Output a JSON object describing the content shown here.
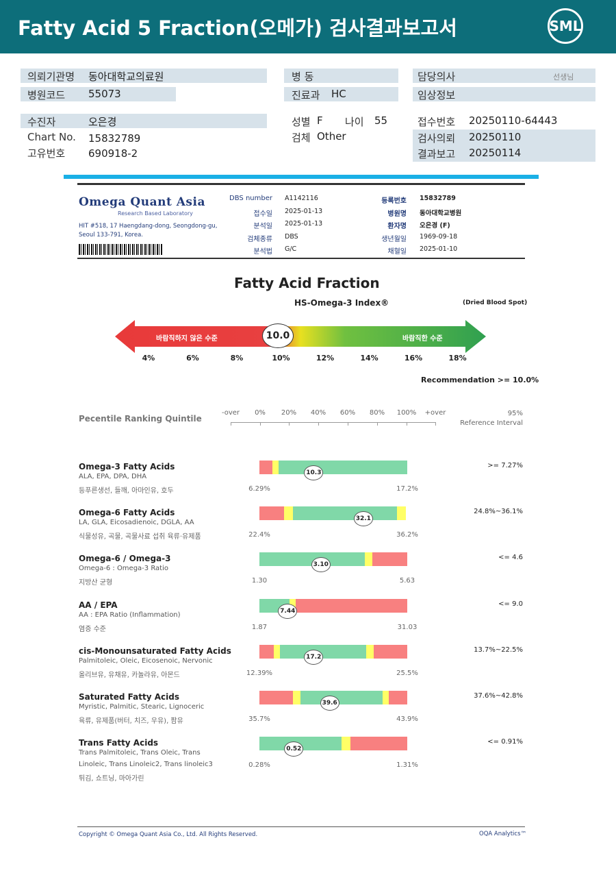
{
  "header": {
    "title": "Fatty Acid 5 Fraction(오메가) 검사결과보고서",
    "logo": "SML"
  },
  "info": {
    "inst_label": "의뢰기관명",
    "inst": "동아대학교의료원",
    "code_label": "병원코드",
    "code": "55073",
    "ward_label": "병 동",
    "dept_label": "진료과",
    "dept": "HC",
    "doctor_label": "담당의사",
    "doctor_suffix": "선생님",
    "clinical_label": "임상정보",
    "patient_label": "수진자",
    "patient": "오은경",
    "chart_label": "Chart No.",
    "chart": "15832789",
    "uid_label": "고유번호",
    "uid": "690918-2",
    "sex_label": "성별",
    "sex": "F",
    "age_label": "나이",
    "age": "55",
    "specimen_label": "검체",
    "specimen": "Other",
    "recv_label": "접수번호",
    "recv": "20250110-64443",
    "req_label": "검사의뢰",
    "req": "20250110",
    "rep_label": "결과보고",
    "rep": "20250114"
  },
  "report": {
    "company": "Omega Quant Asia",
    "company_sub": "Research Based Laboratory",
    "address1": "HIT #518, 17 Haengdang-dong, Seongdong-gu,",
    "address2": "Seoul 133-791, Korea.",
    "left_fields": [
      {
        "k": "DBS number",
        "v": "A1142116"
      },
      {
        "k": "접수일",
        "v": "2025-01-13"
      },
      {
        "k": "분석일",
        "v": "2025-01-13"
      },
      {
        "k": "검체종류",
        "v": "DBS"
      },
      {
        "k": "분석법",
        "v": "G/C"
      }
    ],
    "right_fields": [
      {
        "k": "등록번호",
        "v": "15832789"
      },
      {
        "k": "병원명",
        "v": "동아대학교병원"
      },
      {
        "k": "환자명",
        "v": "오은경 (F)"
      },
      {
        "k": "생년월일",
        "v": "1969-09-18"
      },
      {
        "k": "채혈일",
        "v": "2025-01-10"
      }
    ],
    "title": "Fatty Acid Fraction",
    "index_label": "HS-Omega-3 Index®",
    "spot": "(Dried Blood Spot)",
    "index_value": "10.0",
    "bad": "바람직하지 않은 수준",
    "good": "바람직한 수준",
    "scale": [
      "4%",
      "6%",
      "8%",
      "10%",
      "12%",
      "14%",
      "16%",
      "18%"
    ],
    "recommendation": "Recommendation  >= 10.0%",
    "quintile_label": "Pecentile Ranking Quintile",
    "quintile_ticks": [
      "-over",
      "0%",
      "20%",
      "40%",
      "60%",
      "80%",
      "100%",
      "+over"
    ],
    "ref_label1": "95%",
    "ref_label2": "Reference Interval",
    "copyright": "Copyright © Omega Quant Asia Co., Ltd.  All Rights Reserved.",
    "brand": "OQA Analytics™"
  },
  "rows": [
    {
      "name": "Omega-3 Fatty Acids",
      "sub": "ALA, EPA, DPA, DHA",
      "kr": "등푸른생선, 들깨, 아마인유, 호두",
      "value": 10.3,
      "label": "10.3",
      "min": 6.29,
      "max": 17.2,
      "min_label": "6.29%",
      "max_label": "17.2%",
      "ref": ">= 7.27%"
    },
    {
      "name": "Omega-6 Fatty Acids",
      "sub": "LA, GLA, Eicosadienoic, DGLA, AA",
      "kr": "식물성유, 곡물, 곡물사료 섭취 육류·유제품",
      "value": 32.1,
      "label": "32.1",
      "min": 22.4,
      "max": 36.2,
      "min_label": "22.4%",
      "max_label": "36.2%",
      "ref": "24.8%~36.1%"
    },
    {
      "name": "Omega-6 / Omega-3",
      "sub": "Omega-6 : Omega-3 Ratio",
      "kr": "지방산 균형",
      "value": 3.1,
      "label": "3.10",
      "min": 1.3,
      "max": 5.63,
      "min_label": "1.30",
      "max_label": "5.63",
      "ref": "<= 4.6"
    },
    {
      "name": "AA / EPA",
      "sub": "AA : EPA Ratio (Inflammation)",
      "kr": "염증 수준",
      "value": 7.44,
      "label": "7.44",
      "min": 1.87,
      "max": 31.03,
      "min_label": "1.87",
      "max_label": "31.03",
      "ref": "<= 9.0"
    },
    {
      "name": "cis-Monounsaturated Fatty Acids",
      "sub": "Palmitoleic, Oleic, Eicosenoic, Nervonic",
      "kr": "올리브유, 유채유, 카놀라유, 아몬드",
      "value": 17.2,
      "label": "17.2",
      "min": 12.39,
      "max": 25.5,
      "min_label": "12.39%",
      "max_label": "25.5%",
      "ref": "13.7%~22.5%"
    },
    {
      "name": "Saturated Fatty Acids",
      "sub": "Myristic, Palmitic, Stearic, Lignoceric",
      "kr": "육류, 유제품(버터, 치즈, 우유), 팜유",
      "value": 39.6,
      "label": "39.6",
      "min": 35.7,
      "max": 43.9,
      "min_label": "35.7%",
      "max_label": "43.9%",
      "ref": "37.6%~42.8%"
    },
    {
      "name": "Trans Fatty Acids",
      "sub": "Trans Palmitoleic, Trans Oleic, Trans",
      "sub2": "Linoleic, Trans Linoleic2, Trans linoleic3",
      "kr": "튀김, 쇼트닝, 마아가린",
      "value": 0.52,
      "label": "0.52",
      "min": 0.28,
      "max": 1.31,
      "min_label": "0.28%",
      "max_label": "1.31%",
      "ref": "<= 0.91%"
    }
  ]
}
